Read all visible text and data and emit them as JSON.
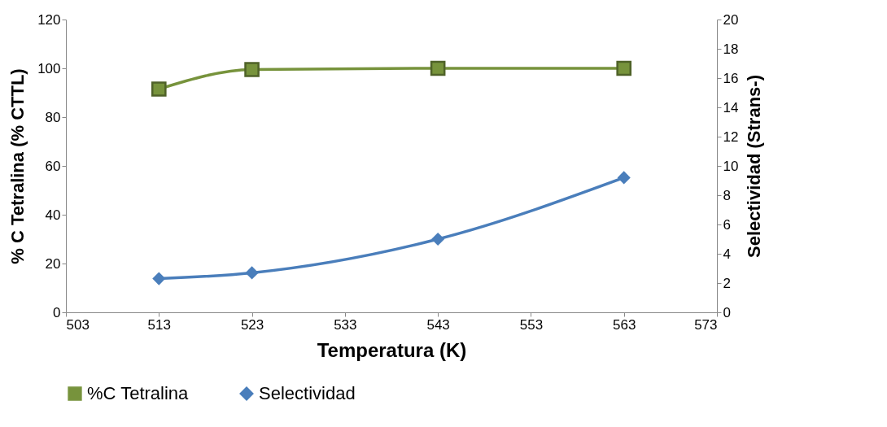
{
  "chart_data": {
    "type": "line",
    "xlabel": "Temperatura (K)",
    "ylabel": "% C Tetralina (% CTTL)",
    "y2label": "Selectividad (Strans-)",
    "x": [
      513,
      523,
      543,
      563
    ],
    "series": [
      {
        "name": "%C Tetralina",
        "color": "#77933c",
        "values": [
          91.5,
          99.5,
          100,
          100
        ],
        "marker": "square"
      },
      {
        "name": "Selectividad",
        "color": "#4a7ebb",
        "values": [
          2.3,
          2.7,
          5.0,
          9.2
        ],
        "marker": "diamond",
        "axis": "y2"
      }
    ],
    "xlim": [
      503,
      573
    ],
    "xticks": [
      503,
      513,
      523,
      533,
      543,
      553,
      563,
      573
    ],
    "ylim": [
      0,
      120
    ],
    "yticks": [
      0,
      20,
      40,
      60,
      80,
      100,
      120
    ],
    "y2lim": [
      0,
      20
    ],
    "y2ticks": [
      0,
      2,
      4,
      6,
      8,
      10,
      12,
      14,
      16,
      18,
      20
    ],
    "grid": false,
    "legend": "bottom",
    "line_style": "solid"
  }
}
